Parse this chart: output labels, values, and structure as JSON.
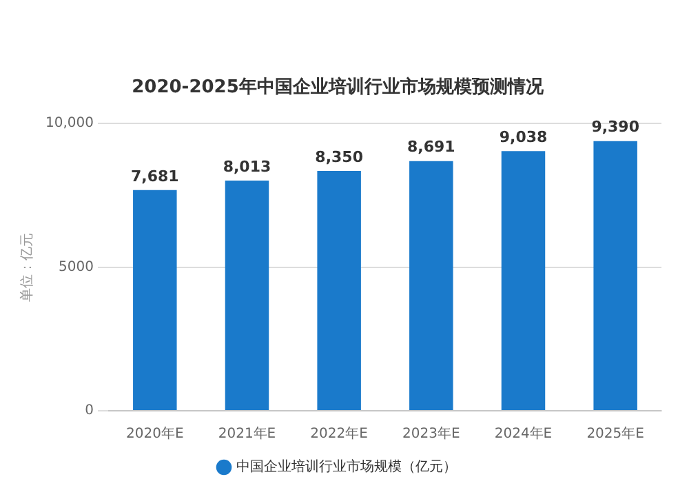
{
  "chart_data": {
    "type": "bar",
    "title": "2020-2025年中国企业培训行业市场规模预测情况",
    "ylabel": "单位：亿元",
    "categories": [
      "2020年E",
      "2021年E",
      "2022年E",
      "2023年E",
      "2024年E",
      "2025年E"
    ],
    "series": [
      {
        "name": "中国企业培训行业市场规模（亿元）",
        "color": "#1a7acb",
        "values": [
          7681,
          8013,
          8350,
          8691,
          9038,
          9390
        ],
        "value_labels": [
          "7,681",
          "8,013",
          "8,350",
          "8,691",
          "9,038",
          "9,390"
        ]
      }
    ],
    "ylim": [
      0,
      10000
    ],
    "yticks": [
      0,
      5000,
      {
        "value": 10000,
        "label": "10,000"
      }
    ],
    "grid": "y",
    "legend": "bottom"
  }
}
